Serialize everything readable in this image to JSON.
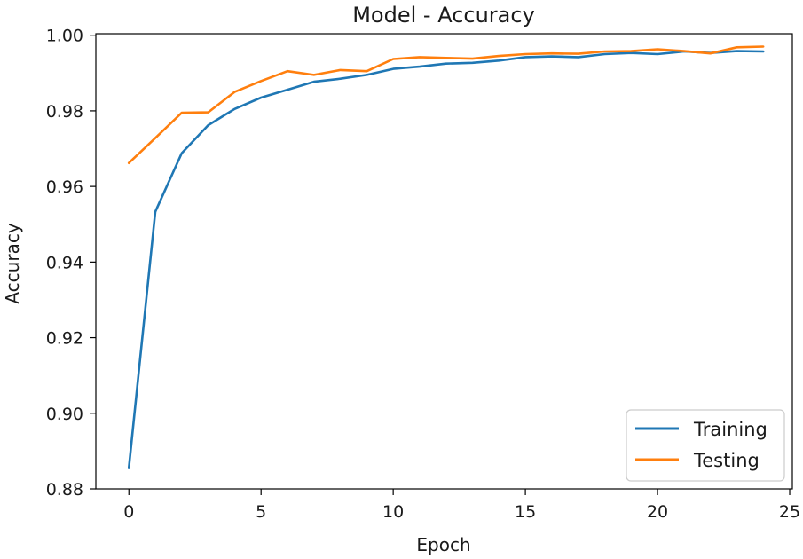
{
  "chart_data": {
    "type": "line",
    "title": "Model - Accuracy",
    "xlabel": "Epoch",
    "ylabel": "Accuracy",
    "xlim": [
      -1.25,
      25.1
    ],
    "ylim": [
      0.88,
      1.0004
    ],
    "xticks": [
      0,
      5,
      10,
      15,
      20,
      25
    ],
    "yticks": [
      0.88,
      0.9,
      0.92,
      0.94,
      0.96,
      0.98,
      1.0
    ],
    "xtick_labels": [
      "0",
      "5",
      "10",
      "15",
      "20",
      "25"
    ],
    "ytick_labels": [
      "0.88",
      "0.90",
      "0.92",
      "0.94",
      "0.96",
      "0.98",
      "1.00"
    ],
    "grid": false,
    "legend_position": "lower-right",
    "x": [
      0,
      1,
      2,
      3,
      4,
      5,
      6,
      7,
      8,
      9,
      10,
      11,
      12,
      13,
      14,
      15,
      16,
      17,
      18,
      19,
      20,
      21,
      22,
      23,
      24
    ],
    "series": [
      {
        "name": "Training",
        "color": "#1f77b4",
        "values": [
          0.8855,
          0.9533,
          0.9688,
          0.9762,
          0.9805,
          0.9835,
          0.9856,
          0.9877,
          0.9885,
          0.9895,
          0.9911,
          0.9917,
          0.9925,
          0.9927,
          0.9933,
          0.9942,
          0.9944,
          0.9942,
          0.995,
          0.9953,
          0.995,
          0.9957,
          0.9953,
          0.9958,
          0.9957
        ]
      },
      {
        "name": "Testing",
        "color": "#ff7f0e",
        "values": [
          0.9662,
          0.9728,
          0.9795,
          0.9796,
          0.985,
          0.9879,
          0.9905,
          0.9895,
          0.9908,
          0.9905,
          0.9937,
          0.9942,
          0.994,
          0.9938,
          0.9945,
          0.995,
          0.9952,
          0.9951,
          0.9957,
          0.9958,
          0.9963,
          0.9958,
          0.9952,
          0.9968,
          0.997
        ]
      }
    ]
  }
}
